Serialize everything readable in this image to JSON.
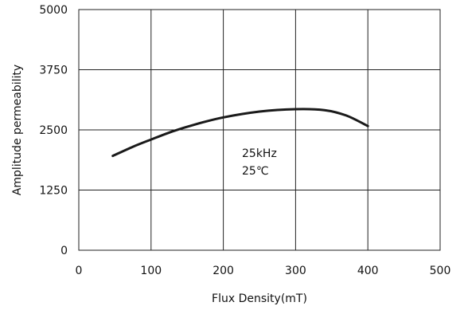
{
  "chart_data": {
    "type": "line",
    "xlabel": "Flux Density(mT)",
    "ylabel": "Amplitude permeability",
    "xlim": [
      0,
      500
    ],
    "ylim": [
      0,
      5000
    ],
    "x_ticks": [
      "0",
      "100",
      "200",
      "300",
      "400",
      "500"
    ],
    "y_ticks": [
      "0",
      "1250",
      "2500",
      "3750",
      "5000"
    ],
    "grid": true,
    "annotations": [
      "25kHz",
      "25℃"
    ],
    "series": [
      {
        "x": [
          47,
          75,
          100,
          130,
          160,
          200,
          250,
          300,
          340,
          370,
          400
        ],
        "y": [
          1960,
          2150,
          2300,
          2470,
          2610,
          2760,
          2880,
          2930,
          2910,
          2800,
          2580
        ]
      }
    ]
  }
}
